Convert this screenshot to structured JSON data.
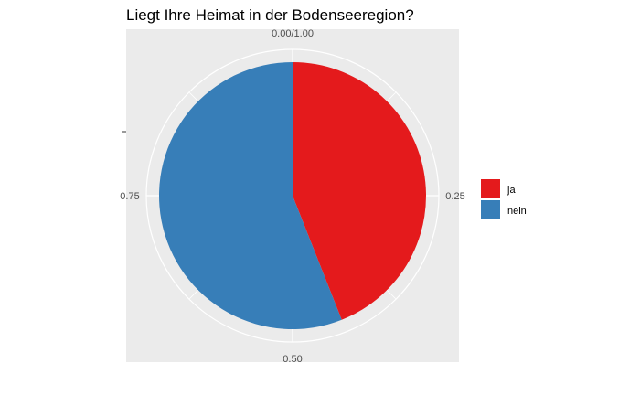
{
  "chart_data": {
    "type": "pie",
    "title": "Liegt Ihre Heimat in der Bodenseeregion?",
    "categories": [
      "ja",
      "nein"
    ],
    "values": [
      0.44,
      0.56
    ],
    "colors": [
      "#e41a1c",
      "#377eb8"
    ],
    "panel_background": "#ebebeb",
    "grid_color": "#ffffff",
    "tick_labels": [
      "0.00/1.00",
      "0.25",
      "0.50",
      "0.75"
    ],
    "legend": {
      "placement": "right",
      "entries": [
        {
          "label": "ja",
          "color": "#e41a1c"
        },
        {
          "label": "nein",
          "color": "#377eb8"
        }
      ]
    }
  }
}
